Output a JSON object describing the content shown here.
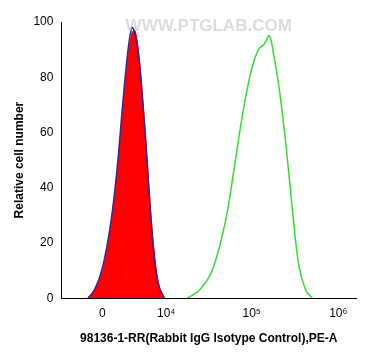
{
  "chart_data": {
    "type": "line",
    "x_label": "98136-1-RR(Rabbit IgG Isotype Control),PE-A",
    "y_label": "Relative cell number",
    "annotations": [
      "WWW.PTGLAB.COM"
    ],
    "series": [
      {
        "type": "area",
        "color": "#ff0000",
        "x": [
          -1500,
          -800,
          0,
          800,
          1500,
          2200,
          2800,
          3300,
          3700,
          4200,
          4800,
          5500,
          6300,
          7200,
          8200,
          9500
        ],
        "values": [
          0,
          3,
          10,
          25,
          45,
          70,
          88,
          96,
          97,
          90,
          75,
          55,
          32,
          14,
          4,
          0
        ]
      },
      {
        "type": "line",
        "color": "#2a2a9a",
        "x": [
          -1500,
          -800,
          0,
          800,
          1500,
          2200,
          2800,
          3300,
          3700,
          4200,
          4800,
          5500,
          6300,
          7200,
          8200,
          9500
        ],
        "values": [
          0,
          3,
          11,
          26,
          46,
          72,
          90,
          98,
          96,
          89,
          74,
          54,
          31,
          13,
          4,
          0
        ]
      },
      {
        "type": "line",
        "color": "#33dd33",
        "x": [
          18000,
          25000,
          35000,
          50000,
          65000,
          80000,
          100000,
          120000,
          140000,
          160000,
          180000,
          210000,
          250000,
          300000,
          350000,
          420000,
          500000
        ],
        "values": [
          0,
          3,
          10,
          28,
          50,
          68,
          83,
          90,
          92,
          95,
          88,
          75,
          55,
          30,
          12,
          3,
          0
        ]
      }
    ],
    "xlim": [
      -5000,
      1600000
    ],
    "xticks": [
      0,
      {
        "value": 10000,
        "label": "10⁴"
      },
      {
        "value": 100000,
        "label": "10⁵"
      },
      {
        "value": 1000000,
        "label": "10⁶"
      }
    ],
    "ylim": [
      0,
      100
    ],
    "yticks": [
      0,
      20,
      40,
      60,
      80,
      100
    ],
    "grid": false
  }
}
